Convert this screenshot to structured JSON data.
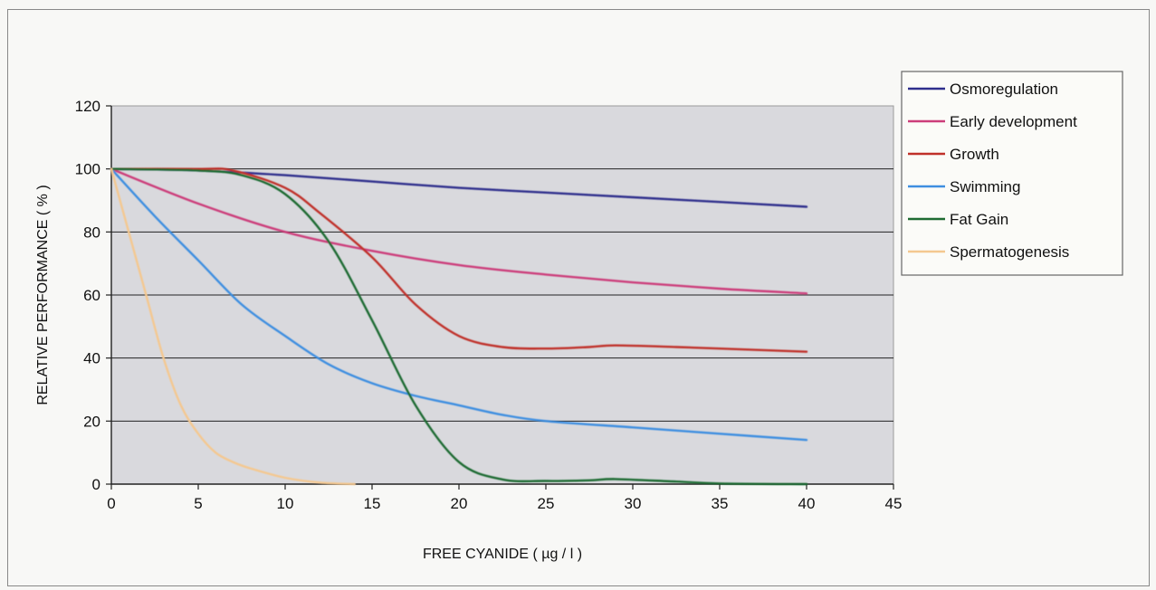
{
  "chart_data": {
    "type": "line",
    "title": "",
    "xlabel": "FREE CYANIDE ( µg / l )",
    "ylabel": "RELATIVE PERFORMANCE ( % )",
    "xlim": [
      0,
      45
    ],
    "ylim": [
      0,
      120
    ],
    "xticks": [
      "0",
      "5",
      "10",
      "15",
      "20",
      "25",
      "30",
      "35",
      "40",
      "45"
    ],
    "yticks": [
      "0",
      "20",
      "40",
      "60",
      "80",
      "100",
      "120"
    ],
    "grid": "horizontal",
    "legend_position": "right",
    "series": [
      {
        "name": "Osmoregulation",
        "color": "#2e2e8c",
        "x": [
          0,
          5,
          10,
          15,
          20,
          25,
          30,
          35,
          40
        ],
        "y": [
          100,
          99.5,
          98,
          96,
          94,
          92.5,
          91,
          89.5,
          88
        ]
      },
      {
        "name": "Early development",
        "color": "#cc3d7a",
        "x": [
          0,
          5,
          10,
          15,
          20,
          25,
          30,
          35,
          40
        ],
        "y": [
          100,
          89,
          80,
          74,
          69.5,
          66.5,
          64,
          62,
          60.5
        ]
      },
      {
        "name": "Growth",
        "color": "#c0302a",
        "x": [
          0,
          5,
          7,
          10,
          12,
          15,
          17.5,
          20,
          22.5,
          25,
          27.5,
          29,
          32.5,
          35,
          40
        ],
        "y": [
          100,
          100,
          99.5,
          94,
          86,
          72,
          57,
          47,
          43.5,
          43,
          43.5,
          44,
          43.5,
          43,
          42
        ]
      },
      {
        "name": "Swimming",
        "color": "#3e8ee0",
        "x": [
          0,
          2.5,
          5,
          7.5,
          10,
          12.5,
          15,
          17.5,
          20,
          22.5,
          25,
          30,
          35,
          40
        ],
        "y": [
          100,
          85,
          71,
          57,
          47,
          38,
          32,
          28,
          25,
          22,
          20,
          18,
          16,
          14
        ]
      },
      {
        "name": "Fat Gain",
        "color": "#1e6b32",
        "x": [
          0,
          5,
          7.5,
          10,
          12.5,
          15,
          17.5,
          20,
          22.5,
          25,
          27.5,
          29,
          32.5,
          35,
          40
        ],
        "y": [
          100,
          99.5,
          98,
          92,
          77,
          52,
          25,
          7,
          1.5,
          1,
          1.2,
          1.6,
          0.8,
          0.2,
          0
        ]
      },
      {
        "name": "Spermatogenesis",
        "color": "#f4c890",
        "x": [
          0,
          1,
          2,
          3,
          4,
          5,
          6,
          7,
          8,
          10,
          12,
          14
        ],
        "y": [
          100,
          80,
          60,
          40,
          25,
          16,
          10,
          7,
          5,
          2,
          0.5,
          0
        ]
      }
    ]
  }
}
